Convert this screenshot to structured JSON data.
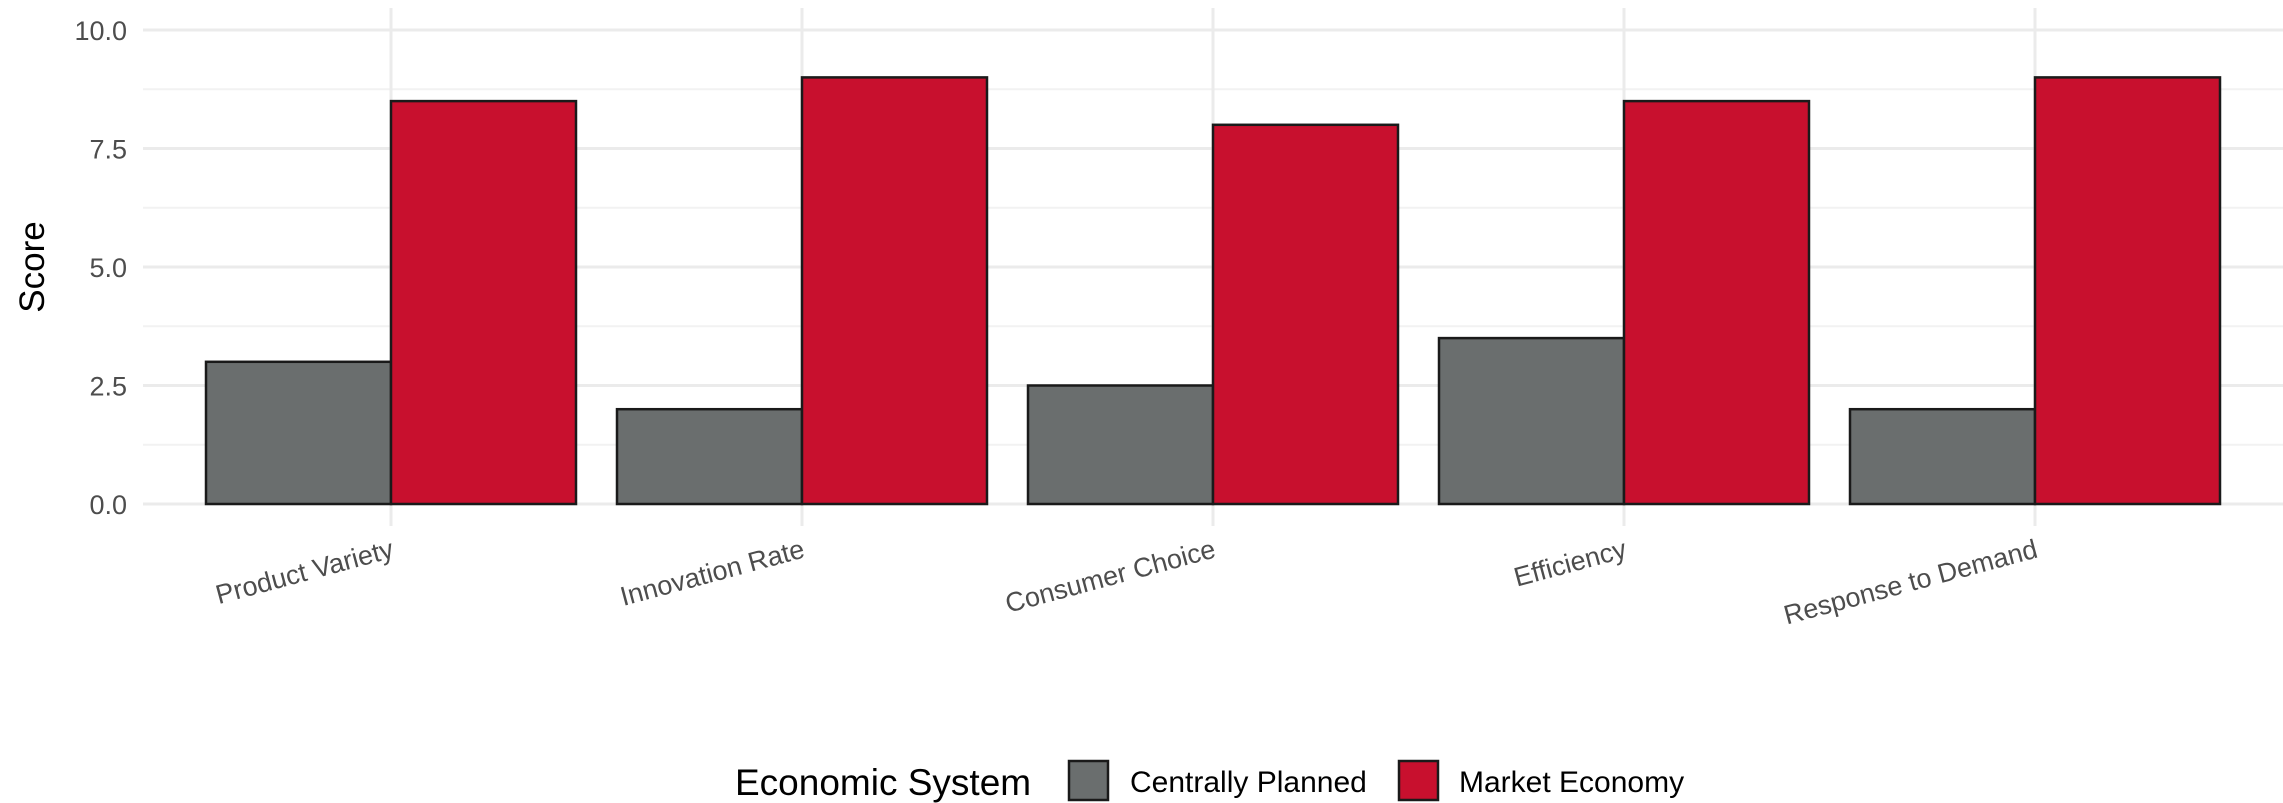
{
  "chart_data": {
    "type": "bar",
    "title": "",
    "xlabel": "",
    "ylabel": "Score",
    "ylim": [
      0,
      10
    ],
    "yticks": [
      "0.0",
      "2.5",
      "5.0",
      "7.5",
      "10.0"
    ],
    "grid": true,
    "legend_position": "bottom",
    "legend_title": "Economic System",
    "categories": [
      "Product Variety",
      "Innovation Rate",
      "Consumer Choice",
      "Efficiency",
      "Response to Demand"
    ],
    "series": [
      {
        "name": "Centrally Planned",
        "color": "#6a6e6e",
        "values": [
          3,
          2,
          2.5,
          3.5,
          2
        ]
      },
      {
        "name": "Market Economy",
        "color": "#c8102e",
        "values": [
          8.5,
          9,
          8,
          8.5,
          9
        ]
      }
    ]
  }
}
